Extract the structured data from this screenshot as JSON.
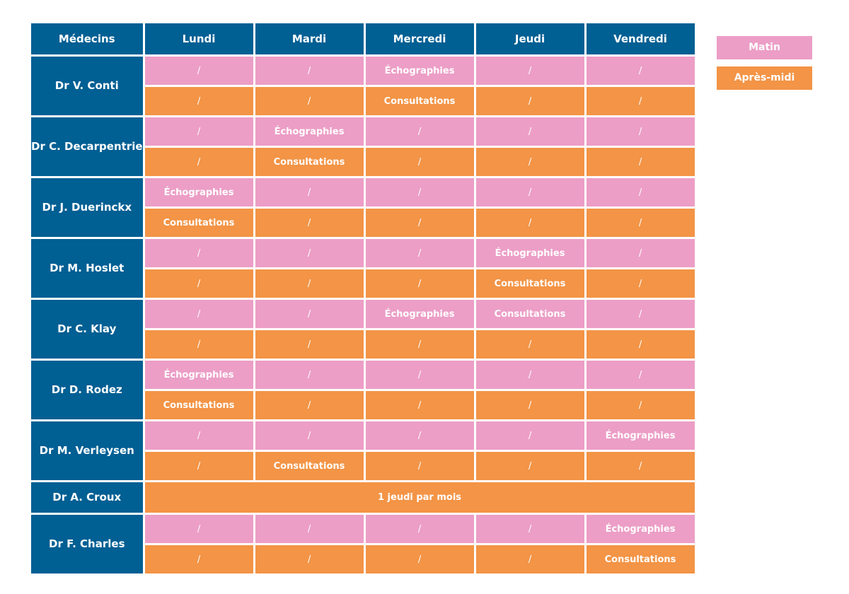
{
  "headers": [
    "Médecins",
    "Lundi",
    "Mardi",
    "Mercredi",
    "Jeudi",
    "Vendredi"
  ],
  "legend": {
    "morning": "Matin",
    "afternoon": "Après-midi"
  },
  "colors": {
    "header": "#005f93",
    "morning": "#ec9ec6",
    "afternoon": "#f39446"
  },
  "doctors": [
    {
      "name": "Dr V. Conti",
      "morning": [
        "/",
        "/",
        "Échographies",
        "/",
        "/"
      ],
      "afternoon": [
        "/",
        "/",
        "Consultations",
        "/",
        "/"
      ]
    },
    {
      "name": "Dr C. Decarpentrie",
      "morning": [
        "/",
        "Échographies",
        "/",
        "/",
        "/"
      ],
      "afternoon": [
        "/",
        "Consultations",
        "/",
        "/",
        "/"
      ]
    },
    {
      "name": "Dr J. Duerinckx",
      "morning": [
        "Échographies",
        "/",
        "/",
        "/",
        "/"
      ],
      "afternoon": [
        "Consultations",
        "/",
        "/",
        "/",
        "/"
      ]
    },
    {
      "name": "Dr M. Hoslet",
      "morning": [
        "/",
        "/",
        "/",
        "Échographies",
        "/"
      ],
      "afternoon": [
        "/",
        "/",
        "/",
        "Consultations",
        "/"
      ]
    },
    {
      "name": "Dr C. Klay",
      "morning": [
        "/",
        "/",
        "Échographies",
        "Consultations",
        "/"
      ],
      "afternoon": [
        "/",
        "/",
        "/",
        "/",
        "/"
      ]
    },
    {
      "name": "Dr D. Rodez",
      "morning": [
        "Échographies",
        "/",
        "/",
        "/",
        "/"
      ],
      "afternoon": [
        "Consultations",
        "/",
        "/",
        "/",
        "/"
      ]
    },
    {
      "name": "Dr M. Verleysen",
      "morning": [
        "/",
        "/",
        "/",
        "/",
        "Échographies"
      ],
      "afternoon": [
        "/",
        "Consultations",
        "/",
        "/",
        "/"
      ]
    },
    {
      "name": "Dr A. Croux",
      "merged": "1 jeudi par mois"
    },
    {
      "name": "Dr F. Charles",
      "morning": [
        "/",
        "/",
        "/",
        "/",
        "Échographies"
      ],
      "afternoon": [
        "/",
        "/",
        "/",
        "/",
        "Consultations"
      ]
    }
  ]
}
